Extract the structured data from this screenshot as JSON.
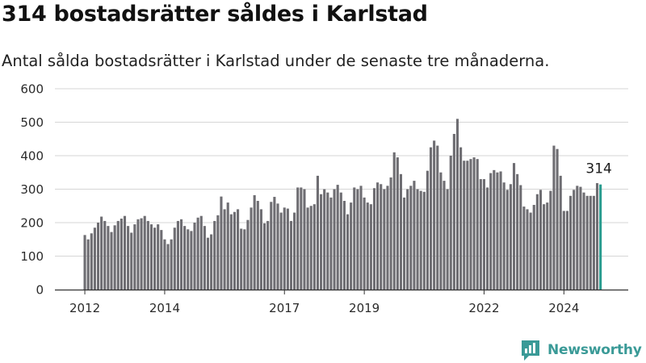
{
  "title": "314 bostadsrätter såldes i Karlstad",
  "subtitle": "Antal sålda bostadsrätter i Karlstad under de senaste tre månaderna.",
  "brand": "Newsworthy",
  "colors": {
    "bar": "#6e6d72",
    "highlight": "#2a9d90",
    "brand": "#3a9a97"
  },
  "chart_data": {
    "type": "bar",
    "title": "314 bostadsrätter såldes i Karlstad",
    "ylim": [
      0,
      600
    ],
    "y_ticks": [
      "0",
      "100",
      "200",
      "300",
      "400",
      "500",
      "600"
    ],
    "x_ticks": [
      {
        "label": "2012",
        "month": "2012-01"
      },
      {
        "label": "2014",
        "month": "2014-01"
      },
      {
        "label": "2017",
        "month": "2017-01"
      },
      {
        "label": "2019",
        "month": "2019-01"
      },
      {
        "label": "2022",
        "month": "2022-01"
      },
      {
        "label": "2024",
        "month": "2024-01"
      }
    ],
    "start_month": "2012-01",
    "grid": true,
    "highlight_label": "314",
    "values": [
      163,
      150,
      168,
      185,
      200,
      218,
      205,
      190,
      172,
      192,
      205,
      212,
      220,
      190,
      170,
      195,
      210,
      213,
      220,
      205,
      195,
      185,
      195,
      178,
      150,
      136,
      150,
      185,
      205,
      210,
      190,
      180,
      175,
      200,
      215,
      220,
      190,
      155,
      165,
      205,
      222,
      278,
      240,
      260,
      225,
      232,
      240,
      182,
      180,
      208,
      245,
      282,
      265,
      240,
      198,
      205,
      262,
      277,
      257,
      230,
      245,
      242,
      205,
      230,
      305,
      305,
      300,
      245,
      250,
      255,
      340,
      285,
      300,
      290,
      275,
      300,
      313,
      290,
      265,
      225,
      260,
      305,
      300,
      310,
      275,
      260,
      255,
      303,
      320,
      315,
      300,
      310,
      335,
      410,
      395,
      345,
      275,
      300,
      310,
      325,
      300,
      295,
      292,
      355,
      425,
      445,
      430,
      350,
      325,
      300,
      400,
      465,
      510,
      425,
      385,
      385,
      390,
      395,
      390,
      330,
      330,
      305,
      348,
      357,
      350,
      353,
      320,
      298,
      315,
      378,
      345,
      312,
      248,
      240,
      230,
      253,
      285,
      298,
      255,
      260,
      295,
      430,
      420,
      340,
      235,
      235,
      280,
      298,
      310,
      307,
      290,
      280,
      280,
      280,
      318,
      314
    ]
  }
}
